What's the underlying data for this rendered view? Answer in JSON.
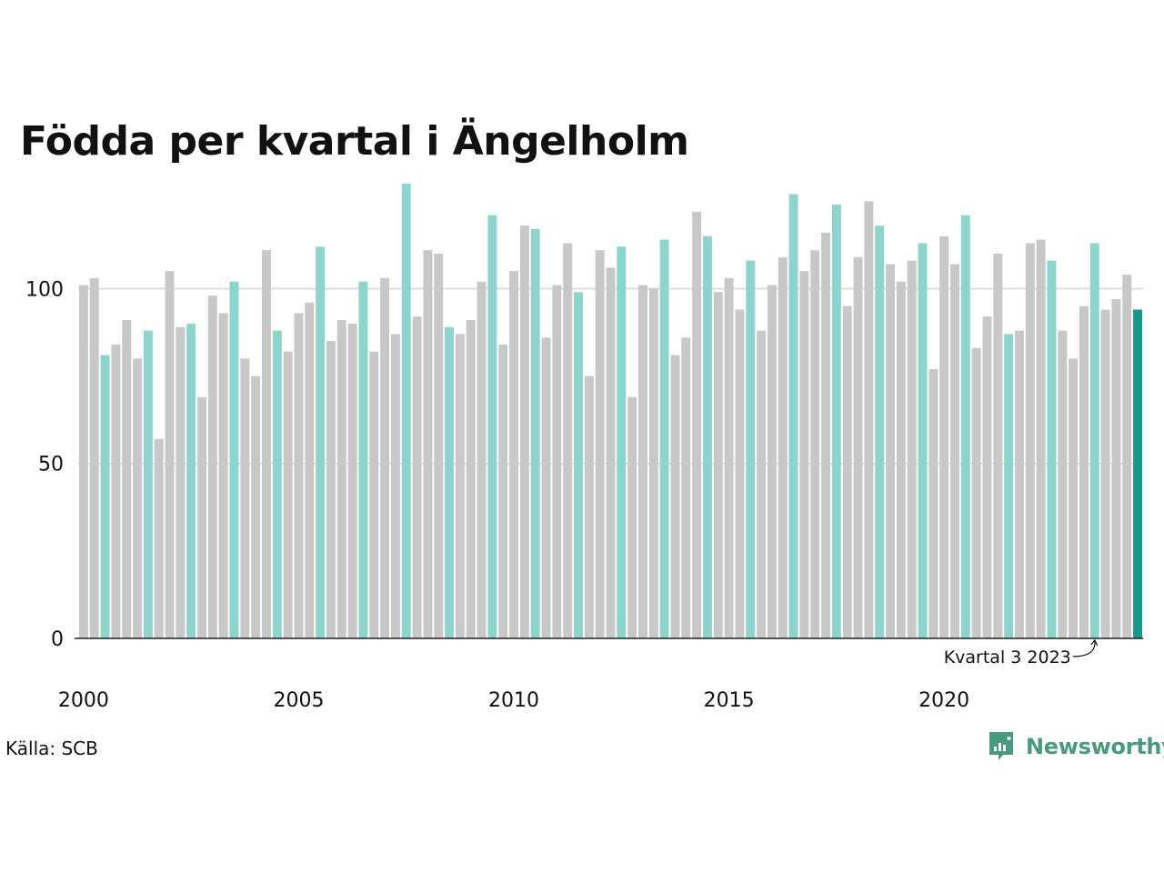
{
  "chart_data": {
    "type": "bar",
    "title": "Födda per kvartal i Ängelholm",
    "x_tick_labels": [
      "2000",
      "2005",
      "2010",
      "2015",
      "2020"
    ],
    "y_ticks": [
      0,
      50,
      100
    ],
    "ylim": [
      0,
      130
    ],
    "grid": "horizontal",
    "categories": [
      "2000 Q1",
      "2000 Q2",
      "2000 Q3",
      "2000 Q4",
      "2001 Q1",
      "2001 Q2",
      "2001 Q3",
      "2001 Q4",
      "2002 Q1",
      "2002 Q2",
      "2002 Q3",
      "2002 Q4",
      "2003 Q1",
      "2003 Q2",
      "2003 Q3",
      "2003 Q4",
      "2004 Q1",
      "2004 Q2",
      "2004 Q3",
      "2004 Q4",
      "2005 Q1",
      "2005 Q2",
      "2005 Q3",
      "2005 Q4",
      "2006 Q1",
      "2006 Q2",
      "2006 Q3",
      "2006 Q4",
      "2007 Q1",
      "2007 Q2",
      "2007 Q3",
      "2007 Q4",
      "2008 Q1",
      "2008 Q2",
      "2008 Q3",
      "2008 Q4",
      "2009 Q1",
      "2009 Q2",
      "2009 Q3",
      "2009 Q4",
      "2010 Q1",
      "2010 Q2",
      "2010 Q3",
      "2010 Q4",
      "2011 Q1",
      "2011 Q2",
      "2011 Q3",
      "2011 Q4",
      "2012 Q1",
      "2012 Q2",
      "2012 Q3",
      "2012 Q4",
      "2013 Q1",
      "2013 Q2",
      "2013 Q3",
      "2013 Q4",
      "2014 Q1",
      "2014 Q2",
      "2014 Q3",
      "2014 Q4",
      "2015 Q1",
      "2015 Q2",
      "2015 Q3",
      "2015 Q4",
      "2016 Q1",
      "2016 Q2",
      "2016 Q3",
      "2016 Q4",
      "2017 Q1",
      "2017 Q2",
      "2017 Q3",
      "2017 Q4",
      "2018 Q1",
      "2018 Q2",
      "2018 Q3",
      "2018 Q4",
      "2019 Q1",
      "2019 Q2",
      "2019 Q3",
      "2019 Q4",
      "2020 Q1",
      "2020 Q2",
      "2020 Q3",
      "2020 Q4",
      "2021 Q1",
      "2021 Q2",
      "2021 Q3",
      "2021 Q4",
      "2022 Q1",
      "2022 Q2",
      "2022 Q3",
      "2022 Q4",
      "2023 Q1",
      "2023 Q2",
      "2023 Q3",
      "2023 Q4",
      "2024 Q1",
      "2024 Q2",
      "2024 Q3"
    ],
    "values": [
      101,
      103,
      81,
      84,
      91,
      80,
      88,
      57,
      105,
      89,
      90,
      69,
      98,
      93,
      102,
      80,
      75,
      111,
      88,
      82,
      93,
      96,
      112,
      85,
      91,
      90,
      102,
      82,
      103,
      87,
      130,
      92,
      111,
      110,
      89,
      87,
      91,
      102,
      121,
      84,
      105,
      118,
      117,
      86,
      101,
      113,
      99,
      75,
      111,
      106,
      112,
      69,
      101,
      100,
      114,
      81,
      86,
      122,
      115,
      99,
      103,
      94,
      108,
      88,
      101,
      109,
      127,
      105,
      111,
      116,
      124,
      95,
      109,
      125,
      118,
      107,
      102,
      108,
      113,
      77,
      115,
      107,
      121,
      83,
      92,
      110,
      87,
      88,
      113,
      114,
      108,
      88,
      80,
      95,
      113,
      94,
      97,
      104,
      94
    ],
    "highlight_quarter": 3,
    "latest_index": 98,
    "annotation": "Kvartal 3 2023",
    "annotation_index": 94,
    "colors": {
      "default": "#c8c8c8",
      "highlight": "#8dd5cc",
      "latest": "#17968a",
      "grid": "#dddddd",
      "axis": "#222222"
    }
  },
  "footer": {
    "source": "Källa: SCB",
    "brand": "Newsworthy"
  },
  "icons": {
    "brand_logo": "newsworthy-logo-icon"
  },
  "colors": {
    "brand": "#4a9a7f"
  }
}
